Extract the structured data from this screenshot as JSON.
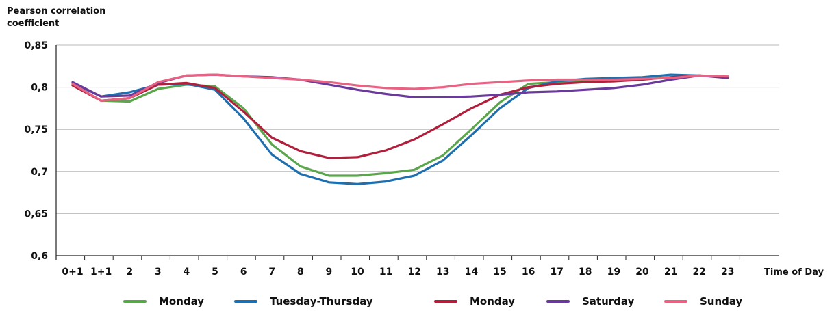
{
  "chart_data": {
    "type": "line",
    "ylabel": "Pearson correlation coefficient",
    "xlabel": "Time of Day",
    "ylim": [
      0.6,
      0.85
    ],
    "y_ticks": [
      "0,6",
      "0,65",
      "0,7",
      "0,75",
      "0,8",
      "0,85"
    ],
    "y_tick_values": [
      0.6,
      0.65,
      0.7,
      0.75,
      0.8,
      0.85
    ],
    "categories": [
      "0+1",
      "1+1",
      "2",
      "3",
      "4",
      "5",
      "6",
      "7",
      "8",
      "9",
      "10",
      "11",
      "12",
      "13",
      "14",
      "15",
      "16",
      "17",
      "18",
      "19",
      "20",
      "21",
      "22",
      "23"
    ],
    "grid": "horizontal",
    "legend_position": "bottom",
    "series": [
      {
        "name": "Monday",
        "color": "#5aa64b",
        "values": [
          0.803,
          0.784,
          0.783,
          0.798,
          0.803,
          0.801,
          0.775,
          0.732,
          0.706,
          0.695,
          0.695,
          0.698,
          0.702,
          0.719,
          0.75,
          0.782,
          0.804,
          0.806,
          0.808,
          0.809,
          0.81,
          0.812,
          0.814,
          0.812
        ]
      },
      {
        "name": "Tuesday-Thursday",
        "color": "#1f6fae",
        "values": [
          0.805,
          0.789,
          0.794,
          0.803,
          0.804,
          0.797,
          0.763,
          0.72,
          0.697,
          0.687,
          0.685,
          0.688,
          0.695,
          0.713,
          0.743,
          0.775,
          0.799,
          0.807,
          0.81,
          0.811,
          0.812,
          0.815,
          0.814,
          0.812
        ]
      },
      {
        "name": "Monday",
        "color": "#b0203c",
        "values": [
          0.802,
          0.784,
          0.787,
          0.803,
          0.805,
          0.799,
          0.771,
          0.74,
          0.724,
          0.716,
          0.717,
          0.725,
          0.738,
          0.756,
          0.775,
          0.791,
          0.8,
          0.804,
          0.806,
          0.807,
          0.809,
          0.812,
          0.814,
          0.812
        ]
      },
      {
        "name": "Saturday",
        "color": "#6a3a9a",
        "values": [
          0.806,
          0.789,
          0.79,
          0.805,
          0.814,
          0.815,
          0.813,
          0.812,
          0.809,
          0.803,
          0.797,
          0.792,
          0.788,
          0.788,
          0.789,
          0.791,
          0.794,
          0.795,
          0.797,
          0.799,
          0.803,
          0.809,
          0.814,
          0.811
        ]
      },
      {
        "name": "Sunday",
        "color": "#e86383",
        "values": [
          0.804,
          0.784,
          0.787,
          0.806,
          0.814,
          0.815,
          0.813,
          0.811,
          0.809,
          0.806,
          0.802,
          0.799,
          0.798,
          0.8,
          0.804,
          0.806,
          0.808,
          0.809,
          0.809,
          0.809,
          0.81,
          0.811,
          0.814,
          0.813
        ]
      }
    ]
  }
}
